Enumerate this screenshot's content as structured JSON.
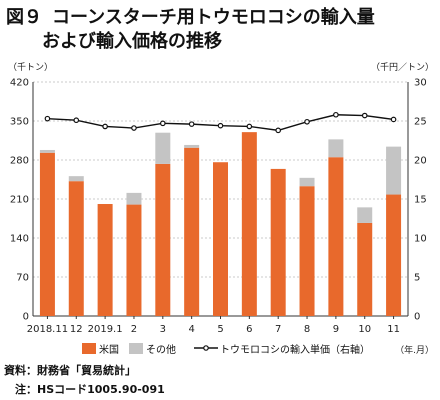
{
  "title": {
    "figure_label": "図９",
    "line1": "コーンスターチ用トウモロコシの輸入量",
    "line2": "および輸入価格の推移"
  },
  "colors": {
    "us": "#e8692c",
    "other": "#c4c4c4",
    "price": "#111111",
    "grid": "#bbbbbb"
  },
  "chart_data": {
    "type": "bar",
    "stacked": true,
    "categories": [
      "2018.11",
      "12",
      "2019.1",
      "2",
      "3",
      "4",
      "5",
      "6",
      "7",
      "8",
      "9",
      "10",
      "11"
    ],
    "series": [
      {
        "name": "米国",
        "axis": "left",
        "values": [
          293,
          242,
          201,
          200,
          273,
          302,
          276,
          330,
          264,
          233,
          285,
          167,
          218
        ]
      },
      {
        "name": "その他",
        "axis": "left",
        "values": [
          5,
          9,
          0,
          21,
          56,
          5,
          0,
          0,
          0,
          15,
          32,
          28,
          86
        ]
      },
      {
        "name": "トウモロコシの輸入単価（右軸）",
        "axis": "right",
        "type": "line",
        "values": [
          25.3,
          25.1,
          24.3,
          24.1,
          24.7,
          24.6,
          24.4,
          24.3,
          23.8,
          24.9,
          25.8,
          25.7,
          25.2
        ]
      }
    ],
    "left_axis": {
      "unit": "（千トン）",
      "ylim": [
        0,
        420
      ],
      "ticks": [
        0,
        70,
        140,
        210,
        280,
        350,
        420
      ]
    },
    "right_axis": {
      "unit": "（千円／トン）",
      "ylim": [
        0,
        30
      ],
      "ticks": [
        0,
        5,
        10,
        15,
        20,
        25,
        30
      ]
    },
    "x_unit": "（年.月）",
    "grid": true,
    "legend_position": "bottom"
  },
  "source": {
    "line1": "資料：財務省「貿易統計」",
    "line2": "　注：HSコード1005.90-091"
  }
}
